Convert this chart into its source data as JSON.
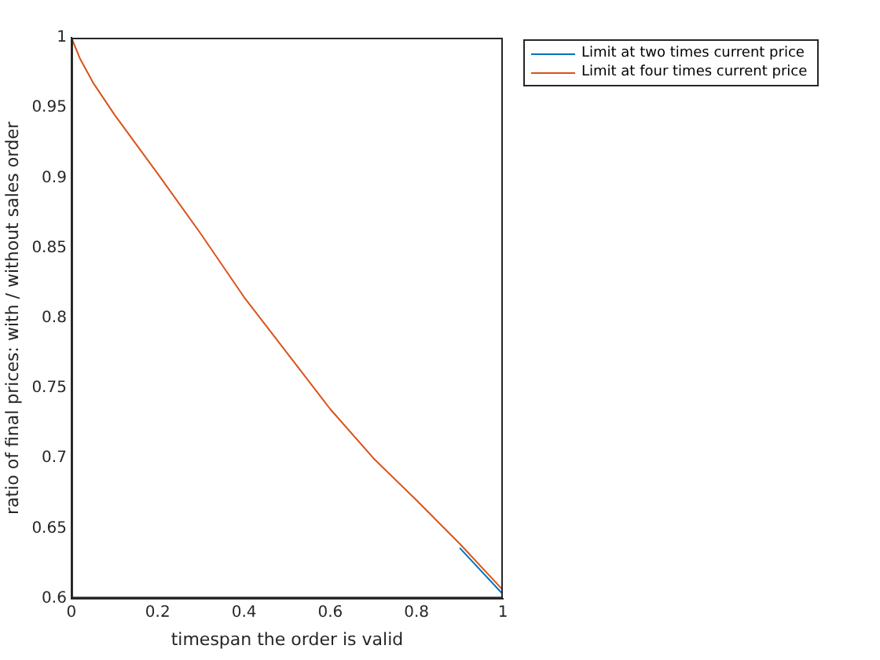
{
  "chart_data": {
    "type": "line",
    "xlabel": "timespan the order is valid",
    "ylabel": "ratio of final prices: with / without sales order",
    "x": [
      0,
      0.02,
      0.05,
      0.1,
      0.2,
      0.3,
      0.4,
      0.5,
      0.6,
      0.7,
      0.8,
      0.9,
      1
    ],
    "series": [
      {
        "name": "Limit at two times current price",
        "color": "#0072bd",
        "values": [
          null,
          null,
          null,
          null,
          null,
          null,
          null,
          null,
          null,
          null,
          null,
          0.636,
          0.603
        ]
      },
      {
        "name": "Limit at four times current price",
        "color": "#d95319",
        "values": [
          1,
          0.985,
          0.968,
          0.945,
          0.903,
          0.86,
          0.815,
          0.775,
          0.735,
          0.7,
          0.67,
          0.639,
          0.606
        ]
      }
    ],
    "xlim": [
      0,
      1
    ],
    "xticks": [
      0,
      0.2,
      0.4,
      0.6,
      0.8,
      1
    ],
    "ylim": [
      0.6,
      1
    ],
    "yticks": [
      0.6,
      0.65,
      0.7,
      0.75,
      0.8,
      0.85,
      0.9,
      0.95,
      1
    ],
    "grid": false,
    "legend": "top right",
    "marker": "none",
    "line_style": "solid"
  }
}
